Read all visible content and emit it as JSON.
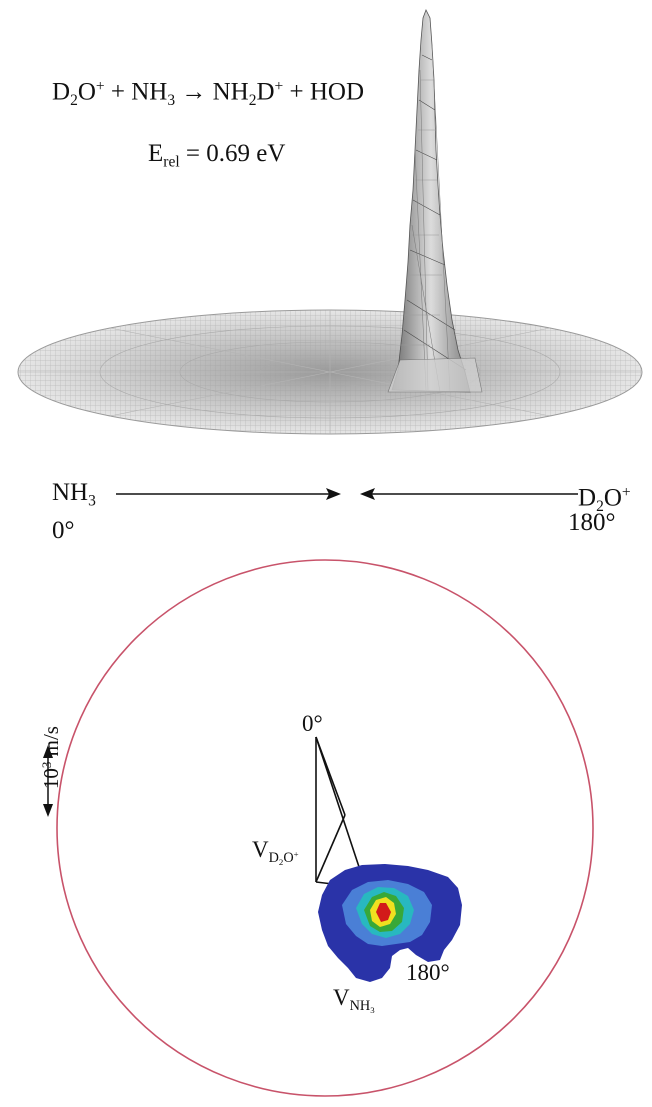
{
  "figure": {
    "reaction_equation": {
      "lhs_a": "D",
      "lhs_a_sub": "2",
      "lhs_a_mid": "O",
      "lhs_a_sup": "+",
      "plus1": " + NH",
      "lhs_b_sub": "3",
      "arrow": " → NH",
      "rhs_a_sub": "2",
      "rhs_a_mid": "D",
      "rhs_a_sup": "+",
      "plus2": " + HOD"
    },
    "energy": {
      "symbol": "E",
      "subscript": "rel",
      "value": " = 0.69 eV"
    },
    "beam_left": {
      "name": "NH",
      "name_sub": "3",
      "angle": "0°"
    },
    "beam_right": {
      "name": "D",
      "name_sub": "2",
      "name_mid": "O",
      "name_sup": "+",
      "angle": "180°"
    },
    "scale": {
      "base": "10",
      "exp": "3",
      "unit": " m/s"
    },
    "contour_labels": {
      "top_angle": "0°",
      "bottom_angle": "180°",
      "v_d2o": {
        "v": "V",
        "sub1": "D",
        "sub2": "2",
        "sub3": "O",
        "sup": "+"
      },
      "v_nh3": {
        "v": "V",
        "sub1": "NH",
        "sub2": "3"
      }
    },
    "colors": {
      "circle": "#c8536a",
      "surface_line": "#8a8a8a",
      "contour_outer": "#2a33a8",
      "contour_mid": "#4a7fd6",
      "contour_cyan": "#28b8c0",
      "contour_green": "#38a838",
      "contour_yellow": "#f0e020",
      "contour_red": "#d21a1a"
    }
  }
}
